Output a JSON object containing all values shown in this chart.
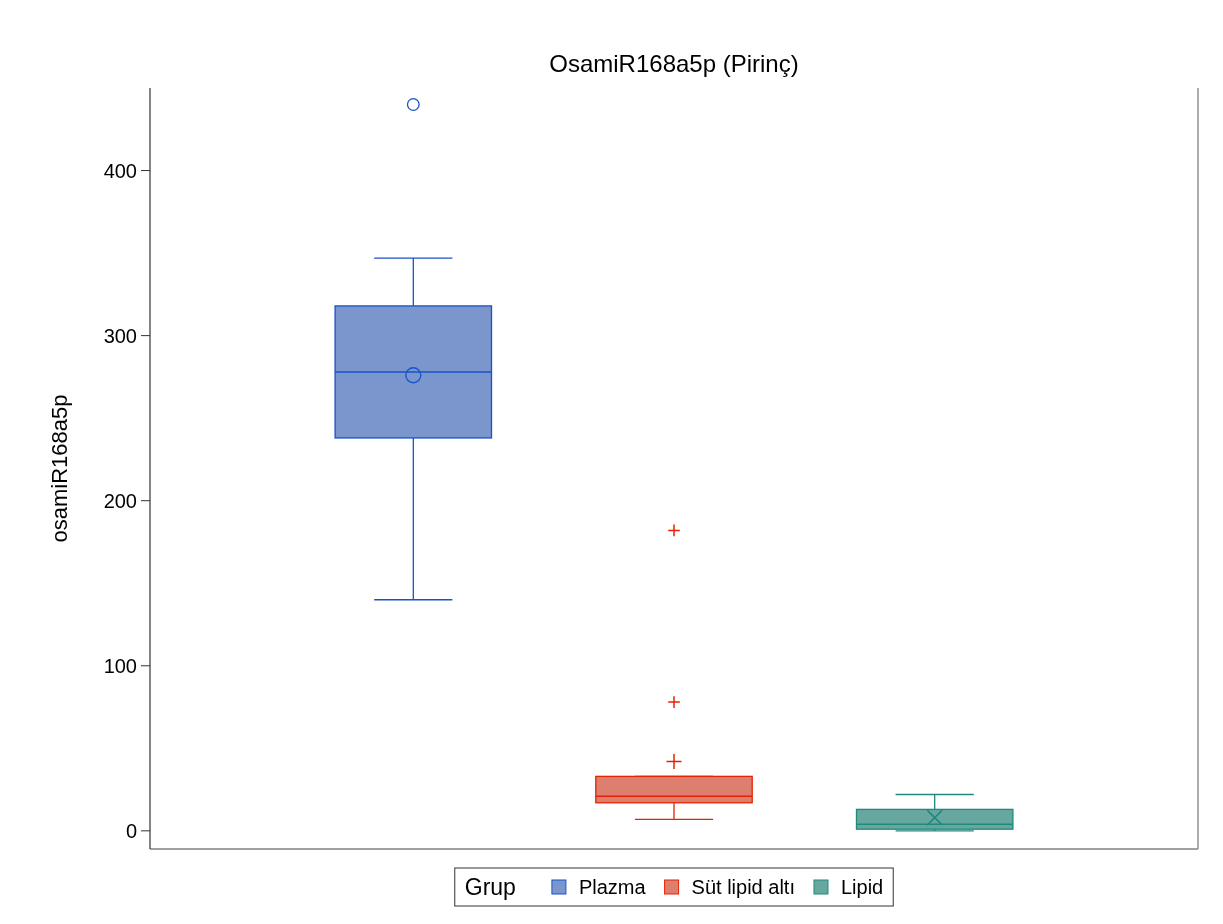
{
  "chart_data": {
    "type": "box",
    "title": "OsamiR168a5p (Pirinç)",
    "ylabel": "osamiR168a5p",
    "legend_title": "Grup",
    "categories": [
      null
    ],
    "series": [
      {
        "name": "Plazma",
        "color": "#7b96cc",
        "marker": "circle",
        "boxes": [
          {
            "low": 140,
            "q1": 238,
            "median": 278,
            "q3": 318,
            "high": 347,
            "mean": 276,
            "outliers": [
              440
            ]
          }
        ]
      },
      {
        "name": "Süt lipid altı",
        "color": "#de7e6e",
        "marker": "cross",
        "boxes": [
          {
            "low": 7,
            "q1": 17,
            "median": 21,
            "q3": 33,
            "high": 33,
            "mean": 42,
            "outliers": [
              182,
              78
            ]
          }
        ]
      },
      {
        "name": "Lipid",
        "color": "#66a8a0",
        "marker": "x",
        "boxes": [
          {
            "low": 0,
            "q1": 1,
            "median": 4,
            "q3": 13,
            "high": 22,
            "mean": 8
          }
        ]
      }
    ],
    "ylim": [
      -11,
      450
    ],
    "yticks": [
      0,
      100,
      200,
      300,
      400
    ],
    "legend": "bottom"
  }
}
